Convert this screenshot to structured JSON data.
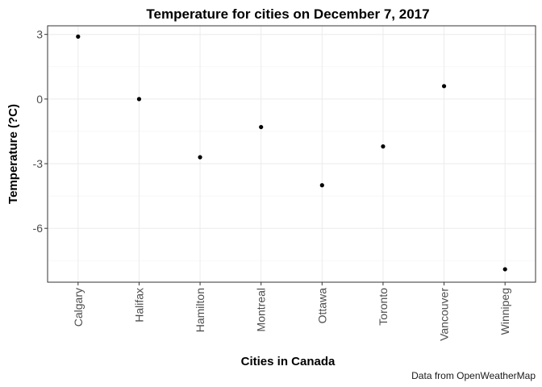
{
  "chart_data": {
    "type": "scatter",
    "title": "Temperature for cities on December 7, 2017",
    "xlabel": "Cities in Canada",
    "ylabel": "Temperature (?C)",
    "caption": "Data from OpenWeatherMap",
    "categories": [
      "Calgary",
      "Halifax",
      "Hamilton",
      "Montreal",
      "Ottawa",
      "Toronto",
      "Vancouver",
      "Winnipeg"
    ],
    "values": [
      2.9,
      0.0,
      -2.7,
      -1.3,
      -4.0,
      -2.2,
      0.6,
      -7.9
    ],
    "yticks": [
      3,
      0,
      -3,
      -6
    ],
    "ytick_labels": [
      "3",
      "0",
      "-3",
      "-6"
    ],
    "ylim": [
      -8.5,
      3.4
    ],
    "grid": true,
    "theme": "bw",
    "point_color": "#000000"
  }
}
